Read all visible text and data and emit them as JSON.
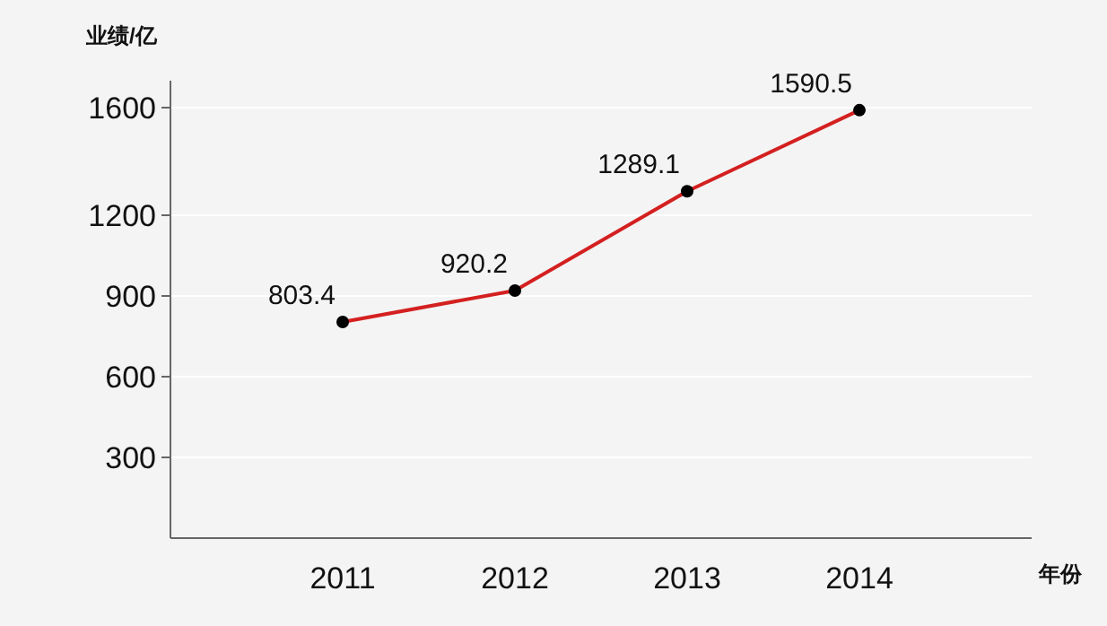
{
  "chart_data": {
    "type": "line",
    "ylabel": "业绩/亿",
    "xlabel": "年份",
    "categories": [
      "2011",
      "2012",
      "2013",
      "2014"
    ],
    "series": [
      {
        "color": "#d42020",
        "values": [
          803.4,
          920.2,
          1289.1,
          1590.5
        ]
      }
    ],
    "marker": "circle",
    "data_labels": true,
    "grid": "y",
    "ylim": [
      0,
      1700
    ],
    "yticks": [
      300,
      600,
      900,
      1200,
      1600
    ]
  }
}
